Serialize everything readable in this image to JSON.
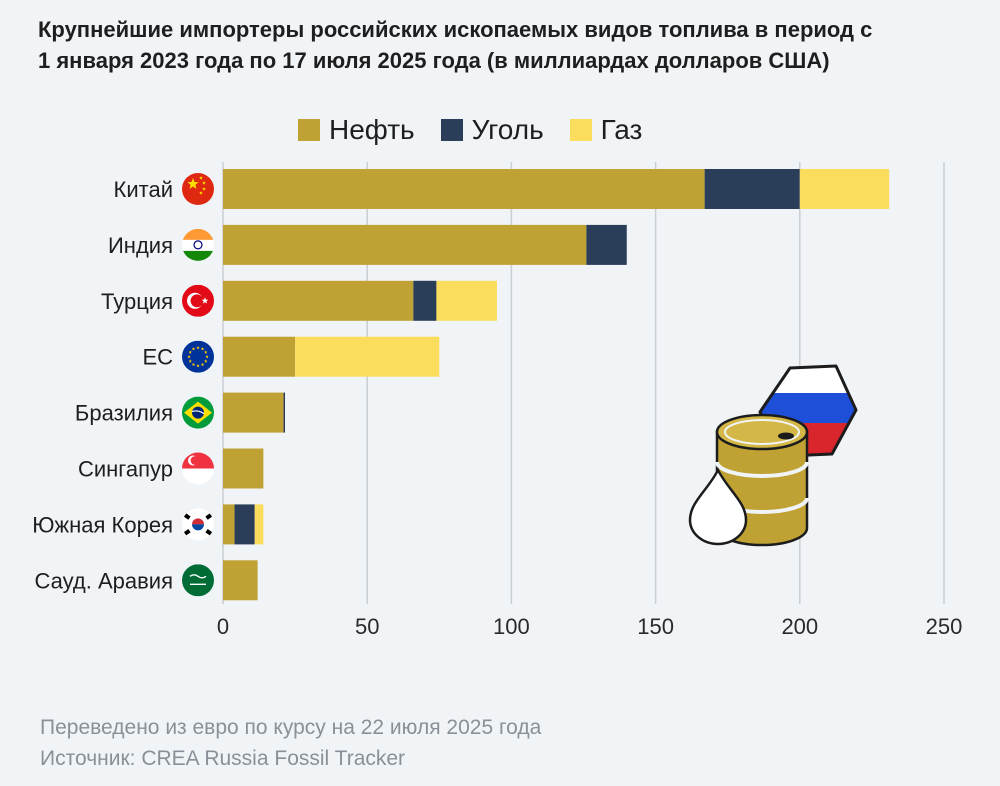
{
  "header": {
    "title_line1": "Крупнейшие импортеры российских ископаемых видов топлива в период с",
    "title_line2": "1 января 2023 года по 17 июля 2025 года (в миллиардах долларов США)"
  },
  "legend": {
    "oil": "Нефть",
    "coal": "Уголь",
    "gas": "Газ"
  },
  "colors": {
    "oil": "#bfa233",
    "coal": "#2a3e59",
    "gas": "#fadd5c",
    "grid": "#c9ced4",
    "background": "#f1f4f7"
  },
  "chart_data": {
    "type": "bar",
    "orientation": "horizontal",
    "stacked": true,
    "title": "Крупнейшие импортеры российских ископаемых видов топлива в период с 1 января 2023 года по 17 июля 2025 года (в миллиардах долларов США)",
    "categories": [
      "Китай",
      "Индия",
      "Турция",
      "ЕС",
      "Бразилия",
      "Сингапур",
      "Южная Корея",
      "Сауд. Аравия"
    ],
    "series": [
      {
        "name": "Нефть",
        "color": "#bfa233",
        "values": [
          167,
          126,
          66,
          25,
          21,
          14,
          4,
          12
        ]
      },
      {
        "name": "Уголь",
        "color": "#2a3e59",
        "values": [
          33,
          14,
          8,
          0,
          0.5,
          0,
          7,
          0
        ]
      },
      {
        "name": "Газ",
        "color": "#fadd5c",
        "values": [
          31,
          0,
          21,
          50,
          0,
          0,
          3,
          0
        ]
      }
    ],
    "xlim": [
      0,
      250
    ],
    "xticks": [
      0,
      50,
      100,
      150,
      200,
      250
    ],
    "grid": true,
    "legend_position": "top"
  },
  "flags": [
    "china-flag-icon",
    "india-flag-icon",
    "turkey-flag-icon",
    "eu-flag-icon",
    "brazil-flag-icon",
    "singapore-flag-icon",
    "south-korea-flag-icon",
    "saudi-arabia-flag-icon"
  ],
  "decoration": [
    "oil-barrel-icon",
    "oil-drop-icon",
    "russia-flag-hexagon-icon"
  ],
  "footer": {
    "note": "Переведено из евро по курсу на 22 июля 2025 года",
    "source": "Источник: CREA Russia Fossil Tracker"
  }
}
